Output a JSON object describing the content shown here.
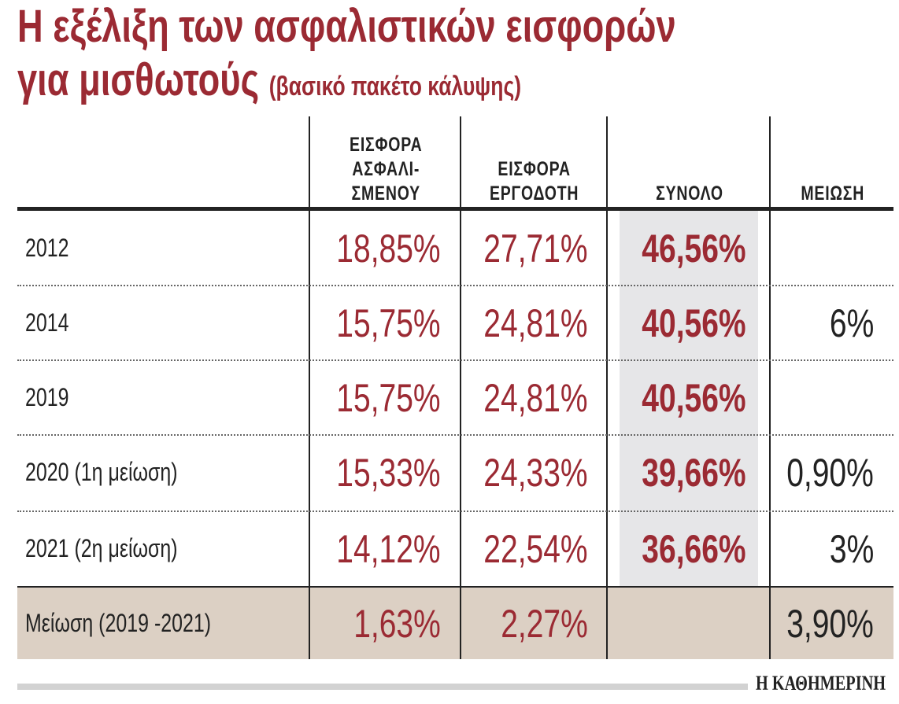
{
  "title_line1": "Η εξέλιξη των ασφαλιστικών εισφορών",
  "title_line2": "για μισθωτούς",
  "subtitle": "(βασικό πακέτο κάλυψης)",
  "colors": {
    "accent": "#9b2a33",
    "total_column_bg": "#e6e6e8",
    "summary_row_bg": "#dcd0c4"
  },
  "chart_data": {
    "type": "table",
    "columns": [
      "",
      "ΕΙΣΦΟΡΑ ΑΣΦΑΛΙ-ΣΜΕΝΟΥ",
      "ΕΙΣΦΟΡΑ ΕΡΓΟΔΟΤΗ",
      "ΣΥΝΟΛΟ",
      "ΜΕΙΩΣΗ"
    ],
    "header_lines": [
      [
        "ΕΙΣΦΟΡΑ",
        "ΑΣΦΑΛΙ-",
        "ΣΜΕΝΟΥ"
      ],
      [
        "ΕΙΣΦΟΡΑ",
        "ΕΡΓΟΔΟΤΗ"
      ],
      [
        "ΣΥΝΟΛΟ"
      ],
      [
        "ΜΕΙΩΣΗ"
      ]
    ],
    "rows": [
      {
        "label": "2012",
        "employee": "18,85%",
        "employer": "27,71%",
        "total": "46,56%",
        "reduction": ""
      },
      {
        "label": "2014",
        "employee": "15,75%",
        "employer": "24,81%",
        "total": "40,56%",
        "reduction": "6%"
      },
      {
        "label": "2019",
        "employee": "15,75%",
        "employer": "24,81%",
        "total": "40,56%",
        "reduction": ""
      },
      {
        "label": "2020 (1η μείωση)",
        "employee": "15,33%",
        "employer": "24,33%",
        "total": "39,66%",
        "reduction": "0,90%"
      },
      {
        "label": "2021  (2η μείωση)",
        "employee": "14,12%",
        "employer": "22,54%",
        "total": "36,66%",
        "reduction": "3%"
      },
      {
        "label": "Μείωση (2019 -2021)",
        "employee": "1,63%",
        "employer": "2,27%",
        "total": "",
        "reduction": "3,90%"
      }
    ]
  },
  "source_logo": "Η ΚΑΘΗΜΕΡΙΝΗ"
}
